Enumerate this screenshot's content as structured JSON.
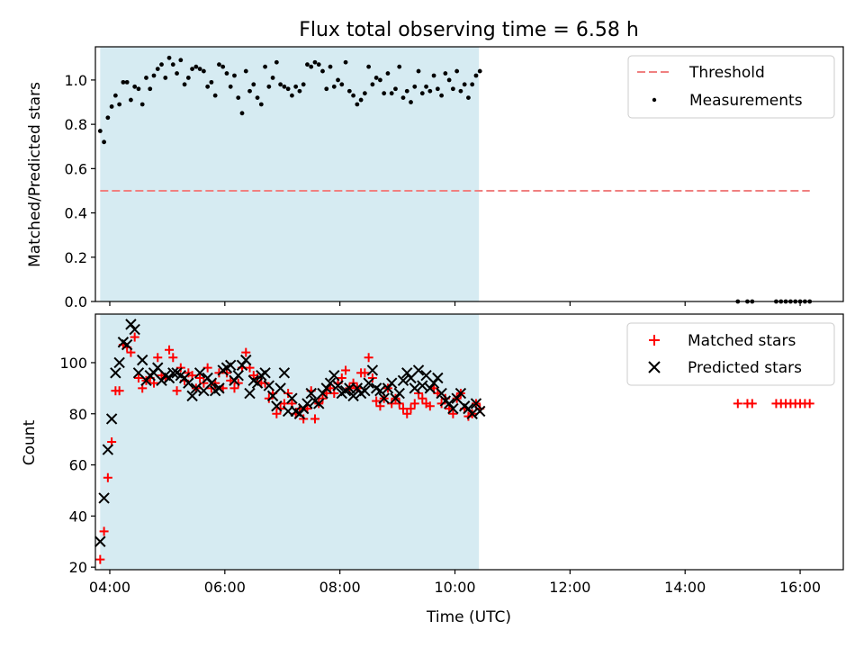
{
  "title": "Flux total observing time = 6.58 h",
  "xlabel": "Time (UTC)",
  "x_ticks": [
    "04:00",
    "06:00",
    "08:00",
    "10:00",
    "12:00",
    "14:00",
    "16:00"
  ],
  "colors": {
    "shade": "#add8e6",
    "threshold": "#f08080",
    "matched": "#ff0000",
    "predicted": "#000000",
    "measurement": "#000000"
  },
  "chart_data": [
    {
      "type": "scatter",
      "ylabel": "Matched/Predicted stars",
      "xlim": [
        "03:45",
        "16:45"
      ],
      "ylim": [
        0,
        1.15
      ],
      "y_ticks": [
        "0.0",
        "0.2",
        "0.4",
        "0.6",
        "0.8",
        "1.0"
      ],
      "shaded_region": [
        "03:50",
        "10:25"
      ],
      "threshold": {
        "name": "Threshold",
        "value": 0.5,
        "x": [
          "03:50",
          "16:10"
        ]
      },
      "legend_position": "top-right",
      "series": [
        {
          "name": "Measurements",
          "x": [
            "03:50",
            "03:54",
            "03:58",
            "04:02",
            "04:06",
            "04:10",
            "04:14",
            "04:18",
            "04:22",
            "04:26",
            "04:30",
            "04:34",
            "04:38",
            "04:42",
            "04:46",
            "04:50",
            "04:54",
            "04:58",
            "05:02",
            "05:06",
            "05:10",
            "05:14",
            "05:18",
            "05:22",
            "05:26",
            "05:30",
            "05:34",
            "05:38",
            "05:42",
            "05:46",
            "05:50",
            "05:54",
            "05:58",
            "06:02",
            "06:06",
            "06:10",
            "06:14",
            "06:18",
            "06:22",
            "06:26",
            "06:30",
            "06:34",
            "06:38",
            "06:42",
            "06:46",
            "06:50",
            "06:54",
            "06:58",
            "07:02",
            "07:06",
            "07:10",
            "07:14",
            "07:18",
            "07:22",
            "07:26",
            "07:30",
            "07:34",
            "07:38",
            "07:42",
            "07:46",
            "07:50",
            "07:54",
            "07:58",
            "08:02",
            "08:06",
            "08:10",
            "08:14",
            "08:18",
            "08:22",
            "08:26",
            "08:30",
            "08:34",
            "08:38",
            "08:42",
            "08:46",
            "08:50",
            "08:54",
            "08:58",
            "09:02",
            "09:06",
            "09:10",
            "09:14",
            "09:18",
            "09:22",
            "09:26",
            "09:30",
            "09:34",
            "09:38",
            "09:42",
            "09:46",
            "09:50",
            "09:54",
            "09:58",
            "10:02",
            "10:06",
            "10:10",
            "10:14",
            "10:18",
            "10:22",
            "10:26",
            "14:55",
            "15:05",
            "15:10",
            "15:35",
            "15:40",
            "15:45",
            "15:50",
            "15:55",
            "16:00",
            "16:05",
            "16:10"
          ],
          "y": [
            0.77,
            0.72,
            0.83,
            0.88,
            0.93,
            0.89,
            0.99,
            0.99,
            0.91,
            0.97,
            0.96,
            0.89,
            1.01,
            0.96,
            1.02,
            1.05,
            1.07,
            1.01,
            1.1,
            1.07,
            1.03,
            1.09,
            0.98,
            1.01,
            1.05,
            1.06,
            1.05,
            1.04,
            0.97,
            0.99,
            0.93,
            1.07,
            1.06,
            1.03,
            0.97,
            1.02,
            0.92,
            0.85,
            1.04,
            0.95,
            0.98,
            0.92,
            0.89,
            1.06,
            0.97,
            1.01,
            1.08,
            0.98,
            0.97,
            0.96,
            0.93,
            0.97,
            0.95,
            0.98,
            1.07,
            1.06,
            1.08,
            1.07,
            1.04,
            0.96,
            1.06,
            0.97,
            1.0,
            0.98,
            1.08,
            0.95,
            0.93,
            0.89,
            0.91,
            0.94,
            1.06,
            0.98,
            1.01,
            1.0,
            0.94,
            1.03,
            0.94,
            0.96,
            1.06,
            0.92,
            0.95,
            0.9,
            0.97,
            1.04,
            0.94,
            0.97,
            0.95,
            1.02,
            0.96,
            0.93,
            1.03,
            1.0,
            0.96,
            1.04,
            0.95,
            0.98,
            0.92,
            0.98,
            1.02,
            1.04,
            0.0,
            0.0,
            0.0,
            0.0,
            0.0,
            0.0,
            0.0,
            0.0,
            0.0,
            0.0,
            0.0
          ]
        }
      ]
    },
    {
      "type": "scatter",
      "ylabel": "Count",
      "xlim": [
        "03:45",
        "16:45"
      ],
      "ylim": [
        19,
        119
      ],
      "y_ticks": [
        "20",
        "40",
        "60",
        "80",
        "100"
      ],
      "shaded_region": [
        "03:50",
        "10:25"
      ],
      "legend_position": "top-right",
      "series": [
        {
          "name": "Matched stars",
          "x": [
            "03:50",
            "03:54",
            "03:58",
            "04:02",
            "04:06",
            "04:10",
            "04:14",
            "04:18",
            "04:22",
            "04:26",
            "04:30",
            "04:34",
            "04:38",
            "04:42",
            "04:46",
            "04:50",
            "04:54",
            "04:58",
            "05:02",
            "05:06",
            "05:10",
            "05:14",
            "05:18",
            "05:22",
            "05:26",
            "05:30",
            "05:34",
            "05:38",
            "05:42",
            "05:46",
            "05:50",
            "05:54",
            "05:58",
            "06:02",
            "06:06",
            "06:10",
            "06:14",
            "06:18",
            "06:22",
            "06:26",
            "06:30",
            "06:34",
            "06:38",
            "06:42",
            "06:46",
            "06:50",
            "06:54",
            "06:58",
            "07:02",
            "07:06",
            "07:10",
            "07:14",
            "07:18",
            "07:22",
            "07:26",
            "07:30",
            "07:34",
            "07:38",
            "07:42",
            "07:46",
            "07:50",
            "07:54",
            "07:58",
            "08:02",
            "08:06",
            "08:10",
            "08:14",
            "08:18",
            "08:22",
            "08:26",
            "08:30",
            "08:34",
            "08:38",
            "08:42",
            "08:46",
            "08:50",
            "08:54",
            "08:58",
            "09:02",
            "09:06",
            "09:10",
            "09:14",
            "09:18",
            "09:22",
            "09:26",
            "09:30",
            "09:34",
            "09:38",
            "09:42",
            "09:46",
            "09:50",
            "09:54",
            "09:58",
            "10:02",
            "10:06",
            "10:10",
            "10:14",
            "10:18",
            "10:22",
            "10:26",
            "14:55",
            "15:05",
            "15:10",
            "15:35",
            "15:40",
            "15:45",
            "15:50",
            "15:55",
            "16:00",
            "16:05",
            "16:10"
          ],
          "y": [
            23,
            34,
            55,
            69,
            89,
            89,
            107,
            106,
            104,
            110,
            94,
            90,
            93,
            94,
            92,
            102,
            95,
            94,
            105,
            102,
            89,
            98,
            93,
            96,
            95,
            90,
            94,
            92,
            98,
            90,
            92,
            96,
            90,
            96,
            93,
            90,
            92,
            98,
            104,
            98,
            95,
            94,
            92,
            92,
            86,
            88,
            80,
            82,
            84,
            88,
            84,
            80,
            82,
            78,
            82,
            89,
            78,
            84,
            86,
            88,
            90,
            88,
            92,
            94,
            97,
            90,
            92,
            90,
            96,
            96,
            102,
            94,
            85,
            83,
            86,
            90,
            84,
            86,
            84,
            82,
            80,
            82,
            84,
            88,
            86,
            84,
            83,
            90,
            88,
            84,
            86,
            82,
            80,
            86,
            88,
            82,
            79,
            80,
            84,
            82,
            84,
            84,
            84,
            84,
            84,
            84,
            84,
            84,
            84,
            84,
            84
          ]
        },
        {
          "name": "Predicted stars",
          "x": [
            "03:50",
            "03:54",
            "03:58",
            "04:02",
            "04:06",
            "04:10",
            "04:14",
            "04:18",
            "04:22",
            "04:26",
            "04:30",
            "04:34",
            "04:38",
            "04:42",
            "04:46",
            "04:50",
            "04:54",
            "04:58",
            "05:02",
            "05:06",
            "05:10",
            "05:14",
            "05:18",
            "05:22",
            "05:26",
            "05:30",
            "05:34",
            "05:38",
            "05:42",
            "05:46",
            "05:50",
            "05:54",
            "05:58",
            "06:02",
            "06:06",
            "06:10",
            "06:14",
            "06:18",
            "06:22",
            "06:26",
            "06:30",
            "06:34",
            "06:38",
            "06:42",
            "06:46",
            "06:50",
            "06:54",
            "06:58",
            "07:02",
            "07:06",
            "07:10",
            "07:14",
            "07:18",
            "07:22",
            "07:26",
            "07:30",
            "07:34",
            "07:38",
            "07:42",
            "07:46",
            "07:50",
            "07:54",
            "07:58",
            "08:02",
            "08:06",
            "08:10",
            "08:14",
            "08:18",
            "08:22",
            "08:26",
            "08:30",
            "08:34",
            "08:38",
            "08:42",
            "08:46",
            "08:50",
            "08:54",
            "08:58",
            "09:02",
            "09:06",
            "09:10",
            "09:14",
            "09:18",
            "09:22",
            "09:26",
            "09:30",
            "09:34",
            "09:38",
            "09:42",
            "09:46",
            "09:50",
            "09:54",
            "09:58",
            "10:02",
            "10:06",
            "10:10",
            "10:14",
            "10:18",
            "10:22",
            "10:26"
          ],
          "y": [
            30,
            47,
            66,
            78,
            96,
            100,
            108,
            107,
            115,
            113,
            96,
            101,
            93,
            95,
            96,
            98,
            93,
            95,
            94,
            96,
            96,
            95,
            94,
            92,
            87,
            90,
            96,
            89,
            94,
            92,
            89,
            90,
            97,
            98,
            99,
            93,
            95,
            99,
            101,
            88,
            93,
            92,
            95,
            96,
            91,
            87,
            83,
            90,
            96,
            81,
            86,
            81,
            80,
            82,
            84,
            88,
            85,
            84,
            88,
            90,
            92,
            95,
            91,
            88,
            89,
            90,
            87,
            90,
            88,
            89,
            92,
            97,
            90,
            89,
            86,
            90,
            92,
            86,
            88,
            93,
            96,
            94,
            90,
            97,
            91,
            95,
            90,
            92,
            94,
            88,
            85,
            84,
            82,
            86,
            88,
            83,
            82,
            80,
            84,
            81
          ]
        }
      ]
    }
  ]
}
